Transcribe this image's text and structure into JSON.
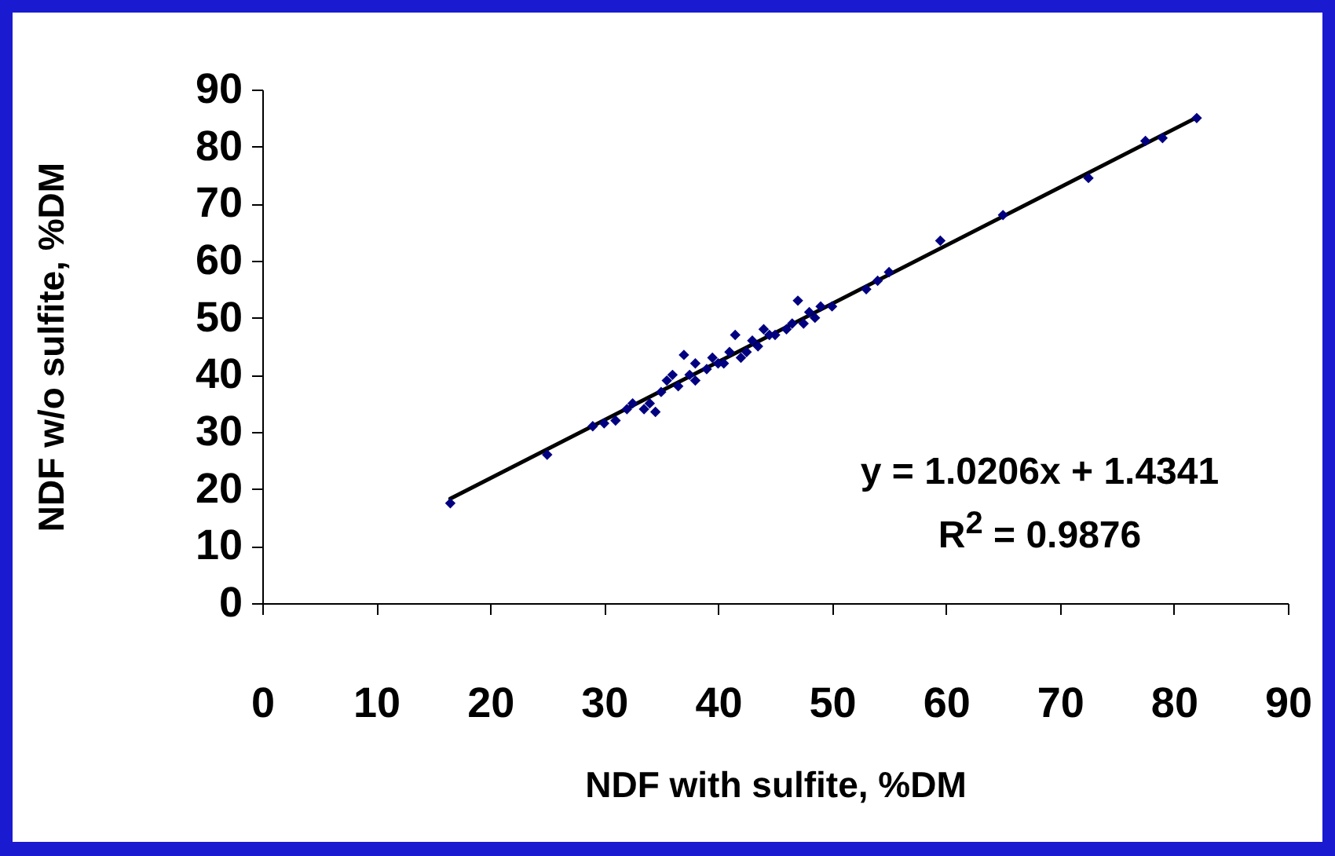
{
  "chart_data": {
    "type": "scatter",
    "xlabel": "NDF with sulfite, %DM",
    "ylabel": "NDF w/o sulfite, %DM",
    "xlim": [
      0,
      90
    ],
    "xticks": [
      0,
      10,
      20,
      30,
      40,
      50,
      60,
      70,
      80,
      90
    ],
    "ylim": [
      0,
      90
    ],
    "yticks": [
      0,
      10,
      20,
      30,
      40,
      50,
      60,
      70,
      80,
      90
    ],
    "grid": false,
    "marker": "diamond",
    "annotations": [
      "y = 1.0206x + 1.4341",
      "R$^{2}$ = 0.9876"
    ],
    "series": [
      {
        "color": "#000080",
        "x": [
          16.5,
          25,
          29,
          30,
          31,
          32,
          32.5,
          33.5,
          34,
          34.5,
          35,
          35.5,
          36,
          36.5,
          37,
          37.5,
          38,
          38,
          39,
          39.5,
          40,
          40.5,
          41,
          41.5,
          42,
          42.5,
          43,
          43.5,
          44,
          44.5,
          45,
          46,
          46.5,
          47,
          47.5,
          48,
          48.5,
          49,
          50,
          53,
          54,
          55,
          59.5,
          65,
          72.5,
          77.5,
          79,
          82
        ],
        "values": [
          17.5,
          26,
          31,
          31.5,
          32,
          34,
          35,
          34,
          35,
          33.5,
          37,
          39,
          40,
          38,
          43.5,
          40,
          42,
          39,
          41,
          43,
          42,
          42,
          44,
          47,
          43,
          44,
          46,
          45,
          48,
          47,
          47,
          48,
          49,
          53,
          49,
          51,
          50,
          52,
          52,
          55,
          56.5,
          58,
          63.5,
          68,
          74.5,
          81,
          81.5,
          85
        ]
      },
      {
        "type": "line",
        "color": "#000000",
        "marker": "none",
        "x": [
          16.5,
          82
        ],
        "values": [
          18.3,
          85.1
        ]
      }
    ]
  }
}
